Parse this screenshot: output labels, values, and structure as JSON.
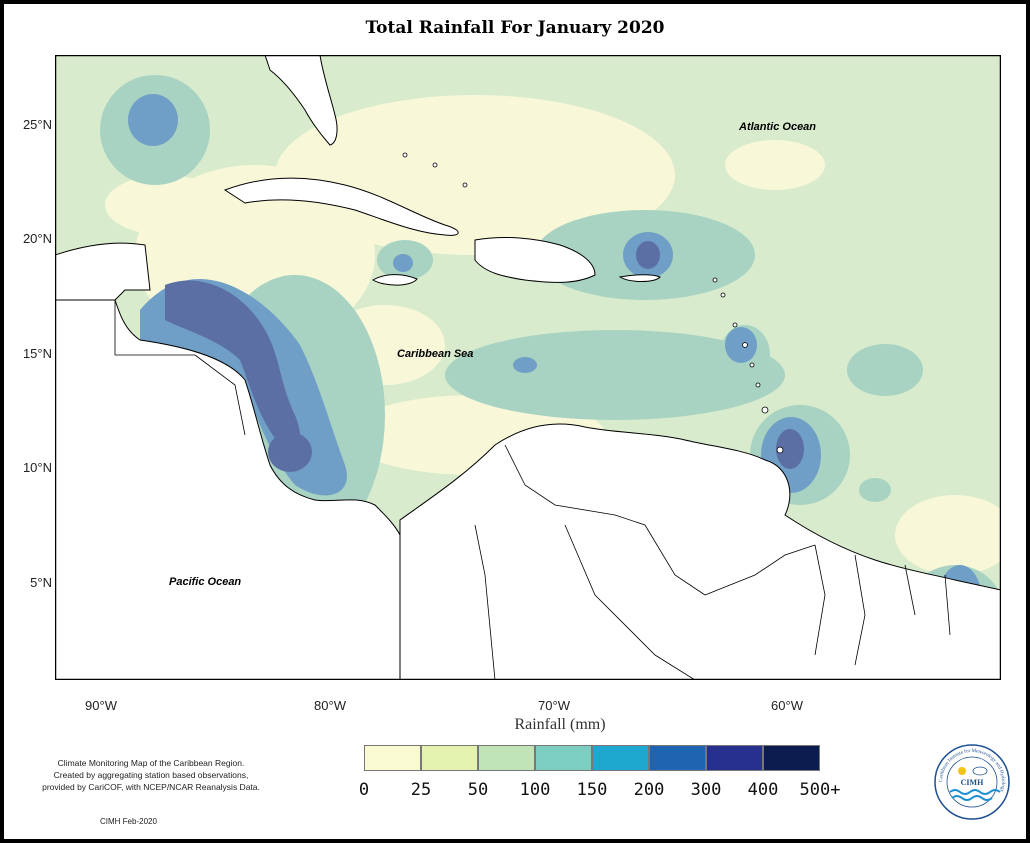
{
  "title": "Total Rainfall For January 2020",
  "map": {
    "labels": {
      "atlantic": "Atlantic Ocean",
      "caribbean": "Caribbean Sea",
      "pacific": "Pacific Ocean"
    },
    "lat_ticks": [
      "25°N",
      "20°N",
      "15°N",
      "10°N",
      "5°N"
    ],
    "lon_ticks": [
      "90°W",
      "80°W",
      "70°W",
      "60°W"
    ],
    "colors": {
      "land": "#ffffff",
      "coast": "#000000"
    }
  },
  "legend": {
    "title": "Rainfall (mm)",
    "tick_labels": [
      "0",
      "25",
      "50",
      "100",
      "150",
      "200",
      "300",
      "400",
      "500+"
    ],
    "bins": [
      {
        "range": "0-25",
        "color": "#fafad2"
      },
      {
        "range": "25-50",
        "color": "#e4f2b0"
      },
      {
        "range": "50-100",
        "color": "#c0e4b8"
      },
      {
        "range": "100-150",
        "color": "#7ccfc0"
      },
      {
        "range": "150-200",
        "color": "#1ea7cf"
      },
      {
        "range": "200-300",
        "color": "#1f64b0"
      },
      {
        "range": "300-400",
        "color": "#27308f"
      },
      {
        "range": "400-500+",
        "color": "#0c1c4e"
      }
    ]
  },
  "notes": {
    "line1": "Climate Monitoring Map of the Caribbean Region.",
    "line2": "Created by aggregating station based observations,",
    "line3": "provided by CariCOF, with NCEP/NCAR Reanalysis Data.",
    "credit": "CIMH Feb-2020"
  },
  "logo": {
    "acronym": "CIMH",
    "ring_text": "Caribbean Institute for Meteorology and Hydrology"
  }
}
